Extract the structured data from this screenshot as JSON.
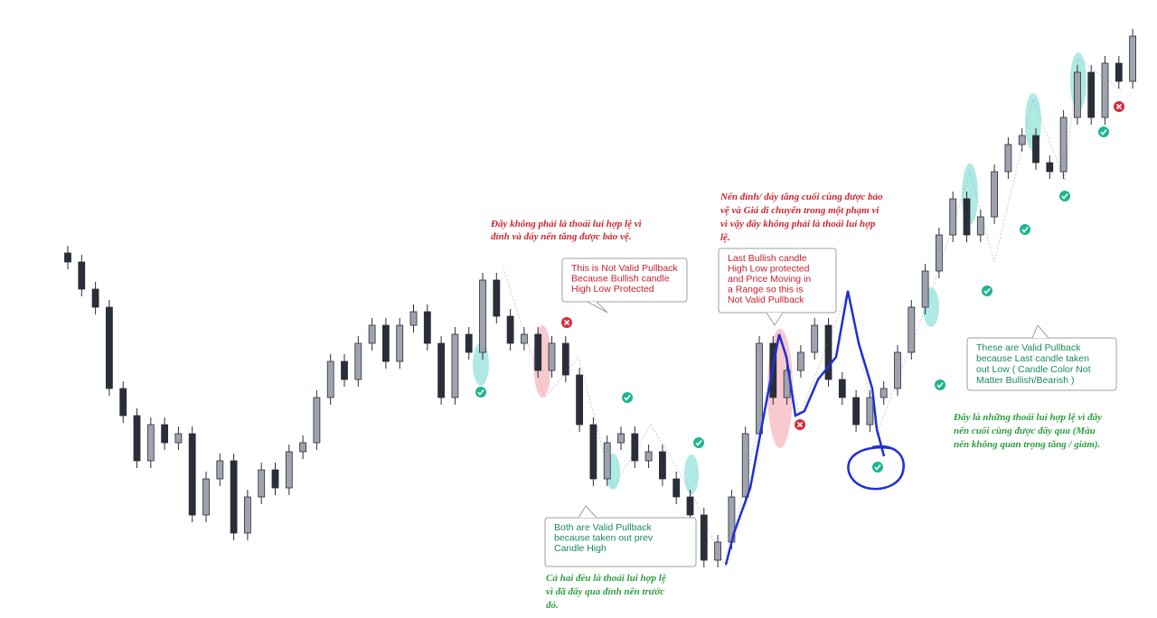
{
  "chart_data": {
    "type": "candlestick",
    "ylim": [
      16,
      700
    ],
    "up_color": "#9ea3ad",
    "down_color": "#2a2e39",
    "open": [
      420,
      410,
      380,
      360,
      270,
      240,
      190,
      230,
      210,
      220,
      130,
      170,
      190,
      110,
      150,
      180,
      160,
      200,
      210,
      260,
      300,
      280,
      320,
      340,
      300,
      340,
      355,
      320,
      260,
      330,
      310,
      390,
      350,
      320,
      330,
      290,
      320,
      285,
      230,
      170,
      210,
      220,
      190,
      200,
      170,
      150,
      130,
      80,
      100,
      150,
      220,
      320,
      260,
      290,
      310,
      340,
      280,
      260,
      230,
      260,
      270,
      310,
      360,
      400,
      440,
      480,
      440,
      460,
      510,
      540,
      550,
      520,
      510,
      570,
      620,
      570,
      630,
      610
    ],
    "high": [
      428,
      418,
      388,
      368,
      278,
      248,
      238,
      238,
      228,
      228,
      178,
      198,
      198,
      158,
      188,
      188,
      208,
      218,
      268,
      308,
      308,
      328,
      348,
      348,
      348,
      363,
      363,
      328,
      338,
      338,
      398,
      398,
      358,
      338,
      338,
      328,
      328,
      293,
      238,
      218,
      228,
      228,
      208,
      208,
      178,
      158,
      138,
      108,
      158,
      228,
      328,
      328,
      298,
      318,
      348,
      348,
      288,
      268,
      268,
      278,
      318,
      368,
      408,
      448,
      488,
      488,
      468,
      518,
      548,
      558,
      558,
      528,
      578,
      628,
      628,
      638,
      638,
      668
    ],
    "low": [
      402,
      372,
      352,
      262,
      232,
      182,
      182,
      202,
      202,
      122,
      122,
      162,
      102,
      102,
      142,
      152,
      152,
      192,
      202,
      252,
      272,
      272,
      312,
      292,
      292,
      332,
      312,
      252,
      252,
      302,
      302,
      342,
      312,
      312,
      282,
      282,
      277,
      222,
      162,
      162,
      202,
      182,
      182,
      162,
      142,
      122,
      72,
      72,
      92,
      142,
      212,
      252,
      252,
      282,
      302,
      272,
      252,
      222,
      222,
      252,
      262,
      302,
      352,
      392,
      432,
      432,
      432,
      452,
      502,
      532,
      512,
      502,
      502,
      562,
      562,
      562,
      602,
      602
    ],
    "close": [
      410,
      380,
      360,
      270,
      240,
      190,
      230,
      210,
      220,
      130,
      170,
      190,
      110,
      150,
      180,
      160,
      200,
      210,
      260,
      300,
      280,
      320,
      340,
      300,
      340,
      355,
      320,
      260,
      330,
      310,
      390,
      350,
      320,
      330,
      290,
      320,
      285,
      230,
      170,
      210,
      220,
      190,
      200,
      170,
      150,
      130,
      80,
      100,
      150,
      220,
      320,
      260,
      290,
      310,
      340,
      280,
      260,
      230,
      260,
      270,
      310,
      360,
      400,
      440,
      480,
      440,
      460,
      510,
      540,
      550,
      520,
      510,
      570,
      620,
      570,
      630,
      610,
      660
    ],
    "annotations": [
      {
        "style": "red",
        "lines": [
          "Đây không phải là thoái lui hợp lệ vì",
          "đỉnh và đáy nến tăng được bảo vệ."
        ]
      },
      {
        "style": "box",
        "lines": [
          "This is Not Valid Pullback",
          "Because  Bullish candle",
          "High Low Protected"
        ]
      },
      {
        "style": "red",
        "lines": [
          "Nến đỉnh/ đáy tăng cuối cùng được bảo",
          "vệ và Giá di chuyển trong một phạm vi",
          "vì vậy đây không phải là thoái lui hợp",
          "lệ."
        ]
      },
      {
        "style": "box",
        "lines": [
          "Last Bullish candle",
          "High Low protected",
          "and Price Moving in",
          "a Range so this is",
          "Not Valid Pullback"
        ]
      },
      {
        "style": "box",
        "lines": [
          "These are Valid Pullback",
          "because Last candle taken",
          "out Low ( Candle Color Not",
          "Matter Bullish/Bearish )"
        ]
      },
      {
        "style": "green",
        "lines": [
          "Đây là những thoái lui  hợp lệ vì đây",
          "nến cuối cùng được đẩy qua (Màu",
          "nến không quan trọng tăng / giảm)."
        ]
      },
      {
        "style": "box",
        "lines": [
          "Both are Valid Pullback",
          "because taken out prev",
          "Candle High"
        ]
      },
      {
        "style": "green",
        "lines": [
          "Cả hai đều là thoái lui hợp lệ",
          "vì đã đẩy qua đỉnh nến trước",
          "đó."
        ]
      }
    ]
  }
}
